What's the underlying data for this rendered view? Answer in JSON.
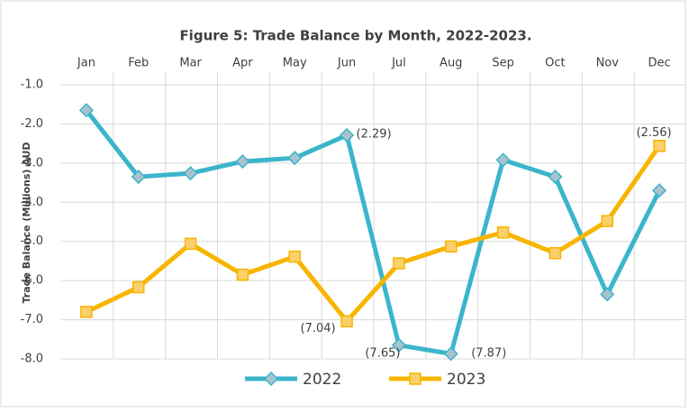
{
  "chart_data": {
    "type": "line",
    "title": "Figure 5: Trade Balance by Month, 2022-2023.",
    "y_label": "Trade Balance (Millions) AUD",
    "categories": [
      "Jan",
      "Feb",
      "Mar",
      "Apr",
      "May",
      "Jun",
      "Jul",
      "Aug",
      "Sep",
      "Oct",
      "Nov",
      "Dec"
    ],
    "series": [
      {
        "name": "2022",
        "color": "#3bb5cb",
        "marker_color": "#a9c3cc",
        "values": [
          -1.65,
          -3.35,
          -3.26,
          -2.96,
          -2.87,
          -2.29,
          -7.65,
          -7.87,
          -2.92,
          -3.35,
          -6.35,
          -3.7
        ],
        "value_labels": [
          null,
          null,
          null,
          null,
          null,
          "(2.29)",
          "(7.65)",
          "(7.87)",
          null,
          null,
          null,
          null
        ]
      },
      {
        "name": "2023",
        "color": "#f7b500",
        "marker_color": "#f9d06b",
        "values": [
          -6.8,
          -6.17,
          -5.06,
          -5.85,
          -5.39,
          -7.04,
          -5.56,
          -5.13,
          -4.77,
          -5.3,
          -4.48,
          -2.56
        ],
        "value_labels": [
          null,
          null,
          null,
          null,
          null,
          "(7.04)",
          null,
          null,
          null,
          null,
          null,
          "(2.56)"
        ]
      }
    ],
    "ylim": [
      -1,
      -8
    ],
    "yticks": [
      {
        "value": -1,
        "label": "-1.0"
      },
      {
        "value": -2,
        "label": "-2.0"
      },
      {
        "value": -3,
        "label": "-3.0"
      },
      {
        "value": -4,
        "label": "-4.0"
      },
      {
        "value": -5,
        "label": "-5.0"
      },
      {
        "value": -6,
        "label": "-6.0"
      },
      {
        "value": -7,
        "label": "-7.0"
      },
      {
        "value": -8,
        "label": "-8.0"
      }
    ],
    "grid": true,
    "legend": "bottom"
  }
}
